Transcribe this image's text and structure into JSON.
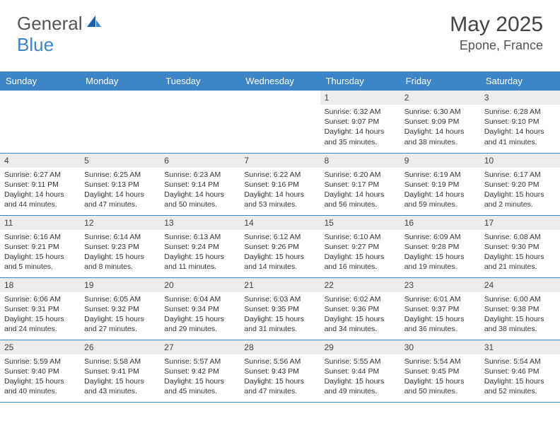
{
  "logo": {
    "general": "General",
    "blue": "Blue"
  },
  "title": "May 2025",
  "location": "Epone, France",
  "colors": {
    "accent": "#3d85c6",
    "header_text": "#ffffff",
    "daynum_bg": "#ececec",
    "body_text": "#333333",
    "title_text": "#444444"
  },
  "weekdays": [
    "Sunday",
    "Monday",
    "Tuesday",
    "Wednesday",
    "Thursday",
    "Friday",
    "Saturday"
  ],
  "weeks": [
    [
      {
        "day": "",
        "sunrise": "",
        "sunset": "",
        "daylight": ""
      },
      {
        "day": "",
        "sunrise": "",
        "sunset": "",
        "daylight": ""
      },
      {
        "day": "",
        "sunrise": "",
        "sunset": "",
        "daylight": ""
      },
      {
        "day": "",
        "sunrise": "",
        "sunset": "",
        "daylight": ""
      },
      {
        "day": "1",
        "sunrise": "Sunrise: 6:32 AM",
        "sunset": "Sunset: 9:07 PM",
        "daylight": "Daylight: 14 hours and 35 minutes."
      },
      {
        "day": "2",
        "sunrise": "Sunrise: 6:30 AM",
        "sunset": "Sunset: 9:09 PM",
        "daylight": "Daylight: 14 hours and 38 minutes."
      },
      {
        "day": "3",
        "sunrise": "Sunrise: 6:28 AM",
        "sunset": "Sunset: 9:10 PM",
        "daylight": "Daylight: 14 hours and 41 minutes."
      }
    ],
    [
      {
        "day": "4",
        "sunrise": "Sunrise: 6:27 AM",
        "sunset": "Sunset: 9:11 PM",
        "daylight": "Daylight: 14 hours and 44 minutes."
      },
      {
        "day": "5",
        "sunrise": "Sunrise: 6:25 AM",
        "sunset": "Sunset: 9:13 PM",
        "daylight": "Daylight: 14 hours and 47 minutes."
      },
      {
        "day": "6",
        "sunrise": "Sunrise: 6:23 AM",
        "sunset": "Sunset: 9:14 PM",
        "daylight": "Daylight: 14 hours and 50 minutes."
      },
      {
        "day": "7",
        "sunrise": "Sunrise: 6:22 AM",
        "sunset": "Sunset: 9:16 PM",
        "daylight": "Daylight: 14 hours and 53 minutes."
      },
      {
        "day": "8",
        "sunrise": "Sunrise: 6:20 AM",
        "sunset": "Sunset: 9:17 PM",
        "daylight": "Daylight: 14 hours and 56 minutes."
      },
      {
        "day": "9",
        "sunrise": "Sunrise: 6:19 AM",
        "sunset": "Sunset: 9:19 PM",
        "daylight": "Daylight: 14 hours and 59 minutes."
      },
      {
        "day": "10",
        "sunrise": "Sunrise: 6:17 AM",
        "sunset": "Sunset: 9:20 PM",
        "daylight": "Daylight: 15 hours and 2 minutes."
      }
    ],
    [
      {
        "day": "11",
        "sunrise": "Sunrise: 6:16 AM",
        "sunset": "Sunset: 9:21 PM",
        "daylight": "Daylight: 15 hours and 5 minutes."
      },
      {
        "day": "12",
        "sunrise": "Sunrise: 6:14 AM",
        "sunset": "Sunset: 9:23 PM",
        "daylight": "Daylight: 15 hours and 8 minutes."
      },
      {
        "day": "13",
        "sunrise": "Sunrise: 6:13 AM",
        "sunset": "Sunset: 9:24 PM",
        "daylight": "Daylight: 15 hours and 11 minutes."
      },
      {
        "day": "14",
        "sunrise": "Sunrise: 6:12 AM",
        "sunset": "Sunset: 9:26 PM",
        "daylight": "Daylight: 15 hours and 14 minutes."
      },
      {
        "day": "15",
        "sunrise": "Sunrise: 6:10 AM",
        "sunset": "Sunset: 9:27 PM",
        "daylight": "Daylight: 15 hours and 16 minutes."
      },
      {
        "day": "16",
        "sunrise": "Sunrise: 6:09 AM",
        "sunset": "Sunset: 9:28 PM",
        "daylight": "Daylight: 15 hours and 19 minutes."
      },
      {
        "day": "17",
        "sunrise": "Sunrise: 6:08 AM",
        "sunset": "Sunset: 9:30 PM",
        "daylight": "Daylight: 15 hours and 21 minutes."
      }
    ],
    [
      {
        "day": "18",
        "sunrise": "Sunrise: 6:06 AM",
        "sunset": "Sunset: 9:31 PM",
        "daylight": "Daylight: 15 hours and 24 minutes."
      },
      {
        "day": "19",
        "sunrise": "Sunrise: 6:05 AM",
        "sunset": "Sunset: 9:32 PM",
        "daylight": "Daylight: 15 hours and 27 minutes."
      },
      {
        "day": "20",
        "sunrise": "Sunrise: 6:04 AM",
        "sunset": "Sunset: 9:34 PM",
        "daylight": "Daylight: 15 hours and 29 minutes."
      },
      {
        "day": "21",
        "sunrise": "Sunrise: 6:03 AM",
        "sunset": "Sunset: 9:35 PM",
        "daylight": "Daylight: 15 hours and 31 minutes."
      },
      {
        "day": "22",
        "sunrise": "Sunrise: 6:02 AM",
        "sunset": "Sunset: 9:36 PM",
        "daylight": "Daylight: 15 hours and 34 minutes."
      },
      {
        "day": "23",
        "sunrise": "Sunrise: 6:01 AM",
        "sunset": "Sunset: 9:37 PM",
        "daylight": "Daylight: 15 hours and 36 minutes."
      },
      {
        "day": "24",
        "sunrise": "Sunrise: 6:00 AM",
        "sunset": "Sunset: 9:38 PM",
        "daylight": "Daylight: 15 hours and 38 minutes."
      }
    ],
    [
      {
        "day": "25",
        "sunrise": "Sunrise: 5:59 AM",
        "sunset": "Sunset: 9:40 PM",
        "daylight": "Daylight: 15 hours and 40 minutes."
      },
      {
        "day": "26",
        "sunrise": "Sunrise: 5:58 AM",
        "sunset": "Sunset: 9:41 PM",
        "daylight": "Daylight: 15 hours and 43 minutes."
      },
      {
        "day": "27",
        "sunrise": "Sunrise: 5:57 AM",
        "sunset": "Sunset: 9:42 PM",
        "daylight": "Daylight: 15 hours and 45 minutes."
      },
      {
        "day": "28",
        "sunrise": "Sunrise: 5:56 AM",
        "sunset": "Sunset: 9:43 PM",
        "daylight": "Daylight: 15 hours and 47 minutes."
      },
      {
        "day": "29",
        "sunrise": "Sunrise: 5:55 AM",
        "sunset": "Sunset: 9:44 PM",
        "daylight": "Daylight: 15 hours and 49 minutes."
      },
      {
        "day": "30",
        "sunrise": "Sunrise: 5:54 AM",
        "sunset": "Sunset: 9:45 PM",
        "daylight": "Daylight: 15 hours and 50 minutes."
      },
      {
        "day": "31",
        "sunrise": "Sunrise: 5:54 AM",
        "sunset": "Sunset: 9:46 PM",
        "daylight": "Daylight: 15 hours and 52 minutes."
      }
    ]
  ]
}
